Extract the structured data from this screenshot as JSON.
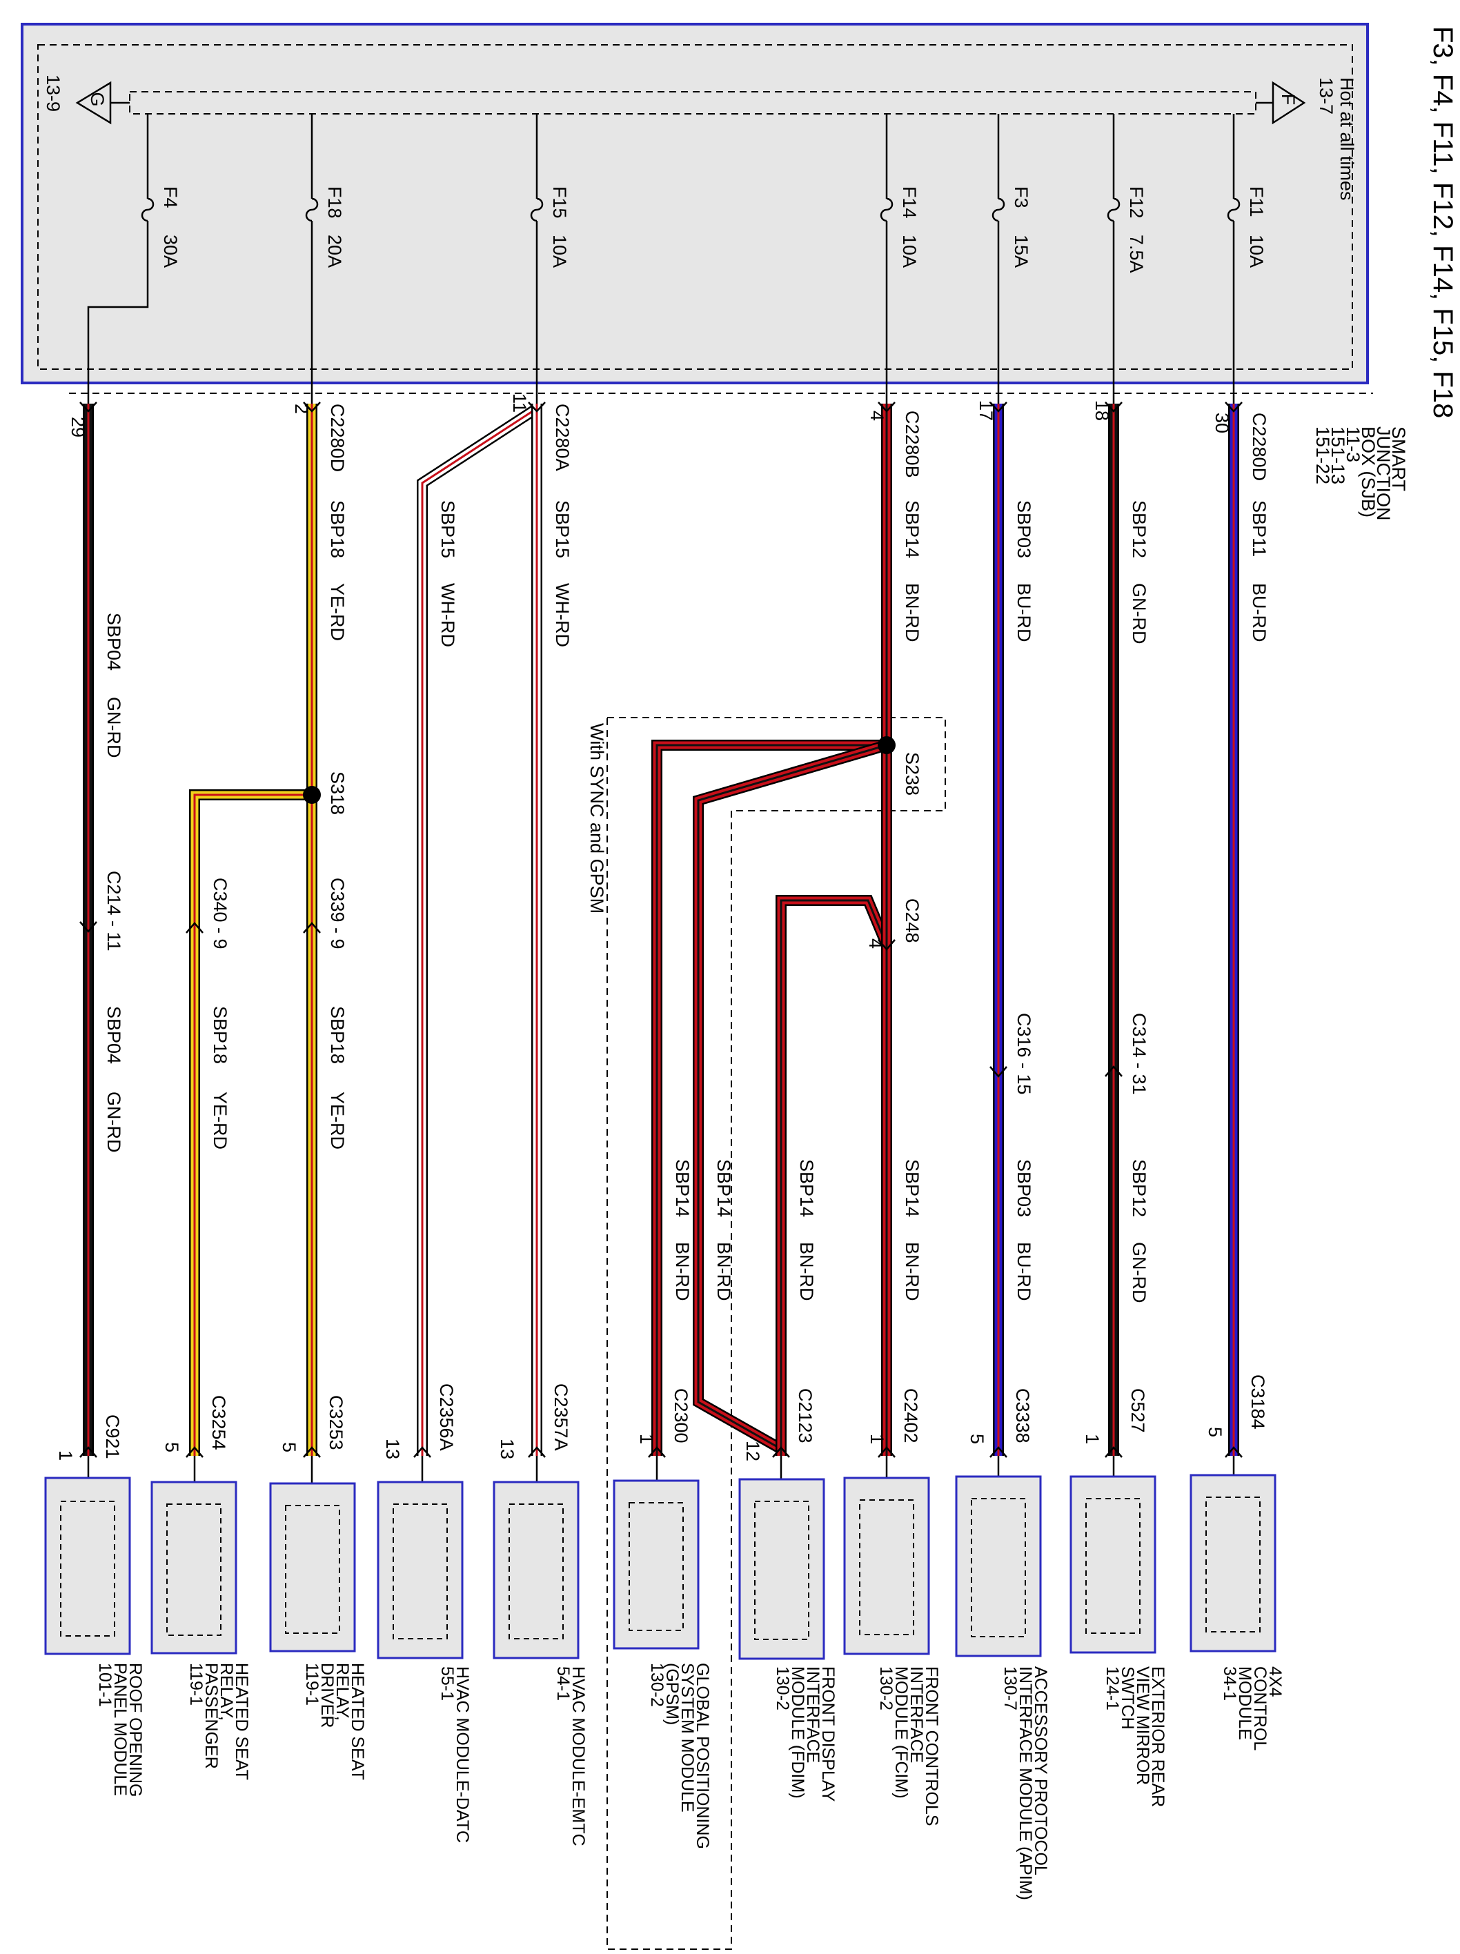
{
  "title": "F3, F4, F11, F12, F14, F15, F18",
  "sjb": {
    "name_lines": [
      "SMART",
      "JUNCTION",
      "BOX (SJB)"
    ],
    "refs": [
      "11-3",
      "151-13",
      "151-22"
    ],
    "hot_label": "Hot at all times",
    "ground_ref": "13-9",
    "feed_ref": "13-7",
    "ground_letter": "G",
    "feed_letter": "F"
  },
  "fuses": [
    {
      "id": "F4",
      "amps": "30A"
    },
    {
      "id": "F18",
      "amps": "20A"
    },
    {
      "id": "F15",
      "amps": "10A"
    },
    {
      "id": "F14",
      "amps": "10A"
    },
    {
      "id": "F3",
      "amps": "15A"
    },
    {
      "id": "F12",
      "amps": "7.5A"
    },
    {
      "id": "F11",
      "amps": "10A"
    }
  ],
  "sjb_outputs": [
    {
      "connector": "",
      "pin": "29"
    },
    {
      "connector": "C2280D",
      "pin": "2"
    },
    {
      "connector": "C2280A",
      "pin": "11"
    },
    {
      "connector": "C2280B",
      "pin": "4"
    },
    {
      "connector": "",
      "pin": "17"
    },
    {
      "connector": "",
      "pin": "18"
    },
    {
      "connector": "C2280D",
      "pin": "30"
    }
  ],
  "circuits": {
    "sbp04": {
      "circuit": "SBP04",
      "color": "GN-RD"
    },
    "sbp18": {
      "circuit": "SBP18",
      "color": "YE-RD"
    },
    "sbp15": {
      "circuit": "SBP15",
      "color": "WH-RD"
    },
    "sbp14": {
      "circuit": "SBP14",
      "color": "BN-RD"
    },
    "sbp03": {
      "circuit": "SBP03",
      "color": "BU-RD"
    },
    "sbp12": {
      "circuit": "SBP12",
      "color": "GN-RD"
    },
    "sbp11": {
      "circuit": "SBP11",
      "color": "BU-RD"
    }
  },
  "splices": {
    "s318": "S318",
    "s238": "S238"
  },
  "inline_connectors": {
    "c214": "C214 - 11",
    "c340": "C340 - 9",
    "c339": "C339 - 9",
    "c248": "C248",
    "c248_pin": "4",
    "c316": "C316 - 15",
    "c314": "C314 - 31"
  },
  "option_label": "With SYNC and GPSM",
  "modules": [
    {
      "connector": "C921",
      "pin": "1",
      "name_lines": [
        "ROOF OPENING",
        "PANEL MODULE",
        "101-1"
      ]
    },
    {
      "connector": "C3254",
      "pin": "5",
      "name_lines": [
        "HEATED SEAT",
        "RELAY,",
        "PASSENGER",
        "119-1"
      ]
    },
    {
      "connector": "C3253",
      "pin": "5",
      "name_lines": [
        "HEATED SEAT",
        "RELAY,",
        "DRIVER",
        "119-1"
      ]
    },
    {
      "connector": "C2356A",
      "pin": "13",
      "name_lines": [
        "HVAC MODULE-DATC",
        "55-1"
      ]
    },
    {
      "connector": "C2357A",
      "pin": "13",
      "name_lines": [
        "HVAC MODULE-EMTC",
        "54-1"
      ]
    },
    {
      "connector": "C2300",
      "pin": "1",
      "name_lines": [
        "GLOBAL POSITIONING",
        "SYSTEM MODULE",
        "(GPSM)",
        "130-2"
      ]
    },
    {
      "connector": "C2123",
      "pin": "12",
      "name_lines": [
        "FRONT DISPLAY",
        "INTERFACE",
        "MODULE (FDIM)",
        "130-2"
      ]
    },
    {
      "connector": "C2402",
      "pin": "1",
      "name_lines": [
        "FRONT CONTROLS",
        "INTERFACE",
        "MODULE (FCIM)",
        "130-2"
      ]
    },
    {
      "connector": "C3338",
      "pin": "5",
      "name_lines": [
        "ACCESSORY PROTOCOL",
        "INTERFACE MODULE (APIM)",
        "130-7"
      ]
    },
    {
      "connector": "C527",
      "pin": "1",
      "name_lines": [
        "EXTERIOR REAR",
        "VIEW MIRROR",
        "SWTCH",
        "124-1"
      ]
    },
    {
      "connector": "C3184",
      "pin": "5",
      "name_lines": [
        "4X4",
        "CONTROL",
        "MODULE",
        "34-1"
      ]
    }
  ],
  "colors": {
    "frame_blue": "#2b2bc0",
    "panel_gray": "#e6e6e6",
    "wire_black": "#111111",
    "wire_red": "#c8101a",
    "wire_yellow": "#f0d21c",
    "wire_blue": "#2a18c8",
    "wire_white": "#ffffff"
  }
}
